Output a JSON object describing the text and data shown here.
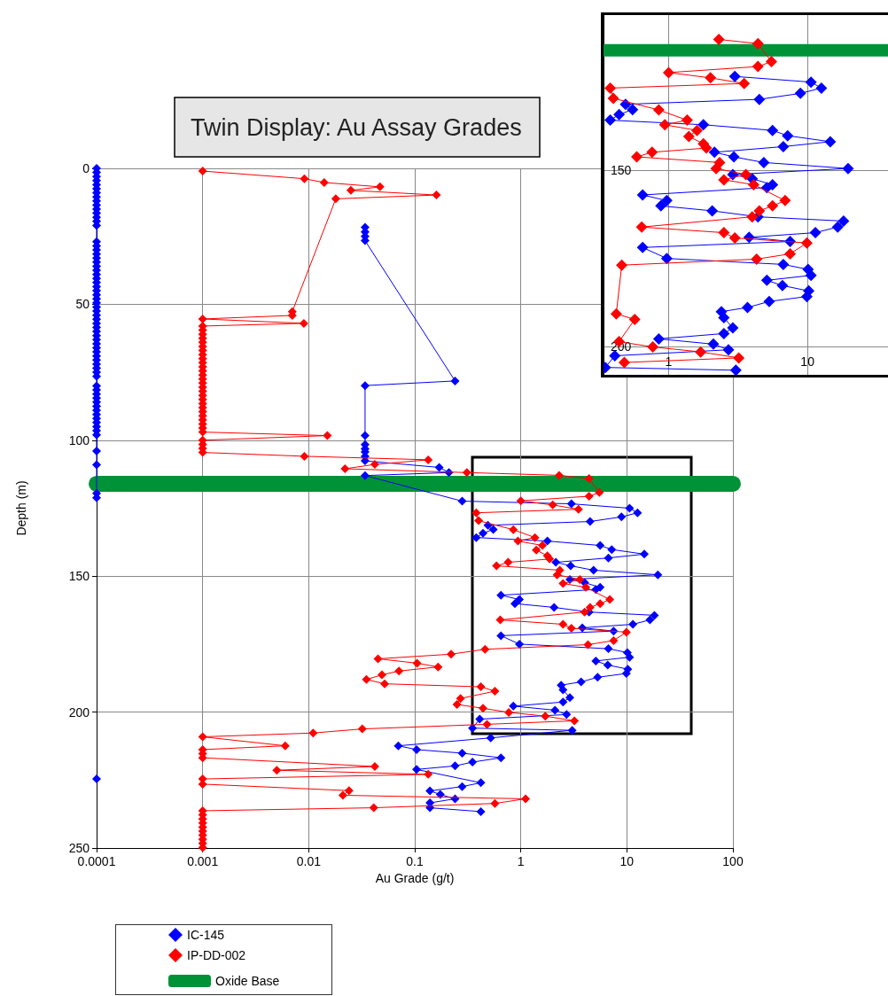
{
  "chart_data": [
    {
      "type": "line",
      "title": "Twin Display: Au Assay Grades",
      "xlabel": "Au Grade (g/t)",
      "ylabel": "Depth (m)",
      "log": "x",
      "xlim": [
        0.0001,
        100
      ],
      "ylim": [
        250,
        0
      ],
      "xticks": [
        0.0001,
        0.001,
        0.01,
        0.1,
        1,
        10,
        100
      ],
      "yticks": [
        0,
        50,
        100,
        150,
        200,
        250
      ],
      "grid": true,
      "legend": "bottom left",
      "marker": "diamond",
      "line_style": "solid",
      "series": [
        {
          "name": "IC-145",
          "color": "#0000ff",
          "x": [
            0.0001,
            0.0001,
            0.0001,
            0.0001,
            0.0001,
            0.0001,
            0.0001,
            0.0001,
            0.0001,
            0.0001,
            0.0001,
            0.0001,
            0.0001,
            0.0001,
            0.0001,
            0.0001,
            0.0001,
            0.0001,
            0.0001,
            0.0001,
            0.0001,
            0.0001,
            0.0001,
            0.0001,
            0.0001,
            0.0001,
            0.0001,
            0.0001,
            0.0001,
            0.0001,
            0.0001,
            0.0001,
            0.0001,
            0.0001,
            0.0001,
            0.0001,
            0.0001,
            0.0001,
            0.0001,
            0.0001,
            0.0001,
            0.0001,
            0.0001,
            0.0001,
            0.0001,
            0.0001,
            0.0001,
            0.0001,
            0.0001,
            0.0001,
            0.0001,
            0.0001,
            0.0001,
            0.0001,
            0.0001,
            0.0001,
            0.0001,
            0.0001,
            0.0001,
            0.0001,
            0.0001,
            0.0001,
            0.0001,
            0.0001,
            0.0001,
            0.0001,
            null,
            0.034,
            0.034,
            0.034,
            0.034,
            0.24,
            0.034,
            0.034,
            0.034,
            0.034,
            0.034,
            0.034,
            0.034,
            0.17,
            0.21,
            0.034,
            0.28,
            3.0,
            10.6,
            12.6,
            8.9,
            4.5,
            0.49,
            0.55,
            0.44,
            0.38,
            1.78,
            5.6,
            7.2,
            14.6,
            6.7,
            2.14,
            2.95,
            4.85,
            19.6,
            2.9,
            4.0,
            5.6,
            5.1,
            0.65,
            0.97,
            0.88,
            2.06,
            4.4,
            18.2,
            16.5,
            11.4,
            3.8,
            7.5,
            0.65,
            0.97,
            6.7,
            10.1,
            10.6,
            5.1,
            6.6,
            10.2,
            9.9,
            5.3,
            3.7,
            2.4,
            2.5,
            2.9,
            2.5,
            0.85,
            2.1,
            2.7,
            0.41,
            0.35,
            3.05,
            0.52,
            0.07,
            0.104,
            0.28,
            0.65,
            0.35,
            0.24,
            0.104,
            0.42,
            0.28,
            0.139,
            0.174,
            0.24,
            0.139,
            0.139,
            0.42,
            null,
            0.0001
          ],
          "values": [
            0,
            1.5,
            3,
            4.5,
            6,
            7.5,
            9,
            10.5,
            12,
            13.5,
            15,
            16.5,
            18,
            19.5,
            21,
            27,
            28.5,
            30,
            31.5,
            33,
            34.5,
            36,
            37.5,
            39,
            40.5,
            42,
            43.5,
            45,
            46.5,
            48,
            49.5,
            51,
            52.5,
            54,
            55.5,
            57,
            58.5,
            60,
            61.5,
            63,
            64.5,
            66,
            67.5,
            69,
            70.5,
            72,
            73.5,
            75,
            76.5,
            80,
            81.5,
            83,
            84.5,
            86,
            87.5,
            89,
            90.5,
            92,
            93.5,
            95,
            96.5,
            98,
            104,
            109,
            119.5,
            121.2,
            null,
            21.7,
            23.4,
            25,
            26.6,
            78.2,
            79.9,
            98.3,
            101.6,
            103.2,
            104.3,
            105.9,
            107.6,
            110,
            111.9,
            113,
            122.4,
            123.4,
            125,
            126.7,
            128.2,
            129.9,
            131.3,
            132.8,
            134.2,
            135.8,
            137.1,
            138.7,
            140.2,
            141.9,
            143.3,
            144.9,
            146.2,
            147.8,
            149.5,
            151.2,
            152.4,
            154.1,
            154.9,
            157,
            158.6,
            160.1,
            161.5,
            163.2,
            164.4,
            166.1,
            167.7,
            169,
            170.2,
            171.9,
            175,
            176.7,
            178.1,
            179.8,
            181.2,
            182.7,
            184.2,
            185.8,
            187.2,
            188.9,
            190.1,
            191.8,
            194.7,
            196.3,
            197.8,
            199.3,
            200.9,
            202.6,
            205.9,
            206.7,
            209.5,
            212.4,
            213.8,
            215.1,
            216.8,
            218.4,
            219.8,
            221.1,
            226,
            227.4,
            229,
            230.3,
            231.9,
            233.4,
            235.2,
            236.6,
            null,
            224.6
          ]
        },
        {
          "name": "IP-DD-002",
          "color": "#ff0000",
          "x": [
            0.001,
            0.0091,
            0.014,
            0.047,
            0.025,
            0.16,
            0.018,
            0.007,
            0.007,
            0.001,
            0.009,
            0.001,
            0.001,
            0.001,
            0.001,
            0.001,
            0.001,
            0.001,
            0.001,
            0.001,
            0.001,
            0.001,
            0.001,
            0.001,
            0.001,
            0.001,
            0.001,
            0.001,
            0.001,
            0.001,
            0.001,
            0.001,
            0.001,
            0.001,
            0.001,
            0.001,
            0.001,
            0.001,
            0.015,
            0.001,
            0.001,
            0.001,
            0.001,
            0.0091,
            0.134,
            0.042,
            0.022,
            0.31,
            2.3,
            4.4,
            5.5,
            4.4,
            1.0,
            2.0,
            3.5,
            0.38,
            0.4,
            0.85,
            1.36,
            0.94,
            1.6,
            1.4,
            1.78,
            1.87,
            0.76,
            0.59,
            2.33,
            2.2,
            3.6,
            2.5,
            4.1,
            6.9,
            5.6,
            4.5,
            4.0,
            0.64,
            2.5,
            3.0,
            9.9,
            7.5,
            4.3,
            0.46,
            0.22,
            0.045,
            0.105,
            0.166,
            0.071,
            0.049,
            0.035,
            0.052,
            0.42,
            0.57,
            0.27,
            0.25,
            0.44,
            0.77,
            1.7,
            3.2,
            0.48,
            0.032,
            0.011,
            0.001,
            0.006,
            0.001,
            0.001,
            0.001,
            0.042,
            0.005,
            0.134,
            0.001,
            0.001,
            0.024,
            0.021,
            1.11,
            0.57,
            0.041,
            0.001,
            0.001,
            0.001,
            0.001,
            0.001,
            0.001,
            0.001,
            0.001,
            0.001,
            0.001
          ],
          "values": [
            1,
            3.8,
            5.2,
            6.8,
            8.1,
            9.8,
            11.2,
            52.7,
            54.1,
            55.4,
            57,
            58,
            59.5,
            61,
            62.5,
            64,
            65.5,
            67,
            68.5,
            70,
            71.5,
            73,
            74.5,
            76,
            77.5,
            79,
            80.5,
            82,
            83.5,
            85,
            86.5,
            88,
            89.5,
            91,
            92.5,
            94,
            95.5,
            97,
            98.3,
            100,
            101.5,
            103,
            104.5,
            105.9,
            107.2,
            108.9,
            110.5,
            111.9,
            112.9,
            114.1,
            119.2,
            120.6,
            122.3,
            123.8,
            125.4,
            126.7,
            129.6,
            132.9,
            135.8,
            137.1,
            138.7,
            140.4,
            142.5,
            143.7,
            144.9,
            146.2,
            147.8,
            149.5,
            151.2,
            152.7,
            154.1,
            158.6,
            160.1,
            161.5,
            163.2,
            166.1,
            167.7,
            169.2,
            170.6,
            173.7,
            175.2,
            176.9,
            178.7,
            180.4,
            182,
            183.4,
            184.9,
            186.3,
            188,
            189.6,
            190.7,
            192.3,
            195,
            197.2,
            198.6,
            200.1,
            201.5,
            203.2,
            204.5,
            206.2,
            207.7,
            209.1,
            212.4,
            213.8,
            215.3,
            216.8,
            220,
            221.4,
            222.9,
            224.6,
            226.5,
            228.9,
            230.6,
            231.9,
            233.6,
            235.2,
            236.3,
            237.8,
            239.3,
            240.8,
            242.3,
            243.8,
            245.3,
            246.8,
            248.3,
            249.8
          ]
        },
        {
          "name": "Oxide Base",
          "color": "#009236",
          "marker": "none",
          "x": [
            0.0001,
            100
          ],
          "values": [
            116,
            116
          ]
        }
      ]
    },
    {
      "type": "line",
      "log": "x",
      "xlim": [
        0.34,
        38
      ],
      "ylim": [
        208,
        106
      ],
      "xticks": [
        1,
        10
      ],
      "yticks": [
        150,
        200
      ],
      "grid": true,
      "marker": "diamond",
      "line_style": "solid",
      "series": [
        {
          "color": "#0000ff",
          "x": [
            3.0,
            10.6,
            12.6,
            8.9,
            4.5,
            0.49,
            0.55,
            0.44,
            0.38,
            1.78,
            5.6,
            7.2,
            14.6,
            6.7,
            2.14,
            2.95,
            4.85,
            19.6,
            2.9,
            4.0,
            5.6,
            5.1,
            0.65,
            0.97,
            0.88,
            2.06,
            4.4,
            18.2,
            16.5,
            11.4,
            3.8,
            7.5,
            0.65,
            0.97,
            6.7,
            10.1,
            10.6,
            5.1,
            6.6,
            10.2,
            9.9,
            5.3,
            3.7,
            2.4,
            2.5,
            2.9,
            2.5,
            0.85,
            2.1,
            2.7,
            0.41,
            0.35,
            3.05
          ],
          "values": [
            123.4,
            125,
            126.7,
            128.2,
            129.9,
            131.3,
            132.8,
            134.2,
            135.8,
            137.1,
            138.7,
            140.2,
            141.9,
            143.3,
            144.9,
            146.2,
            147.8,
            149.5,
            151.2,
            152.4,
            154.1,
            154.9,
            157,
            158.6,
            160.1,
            161.5,
            163.2,
            164.4,
            166.1,
            167.7,
            169,
            170.2,
            171.9,
            175,
            176.7,
            178.1,
            179.8,
            181.2,
            182.7,
            184.2,
            185.8,
            187.2,
            188.9,
            190.1,
            191.8,
            194.7,
            196.3,
            197.8,
            199.3,
            200.9,
            202.6,
            205.9,
            206.7
          ]
        },
        {
          "color": "#ff0000",
          "x": [
            2.3,
            4.4,
            5.5,
            4.4,
            1.0,
            2.0,
            3.5,
            0.38,
            0.4,
            0.85,
            1.36,
            0.94,
            1.6,
            1.4,
            1.78,
            1.87,
            0.76,
            0.59,
            2.33,
            2.2,
            3.6,
            2.5,
            4.1,
            6.9,
            5.6,
            4.5,
            4.0,
            0.64,
            2.5,
            3.0,
            9.9,
            7.5,
            4.3,
            0.46,
            0.42,
            0.57,
            0.44,
            0.77,
            1.7,
            3.2,
            0.48
          ],
          "values": [
            112.9,
            114.1,
            119.2,
            120.6,
            122.3,
            123.8,
            125.4,
            126.7,
            129.6,
            132.9,
            135.8,
            137.1,
            138.7,
            140.4,
            142.5,
            143.7,
            144.9,
            146.2,
            147.8,
            149.5,
            151.2,
            152.7,
            154.1,
            158.6,
            160.1,
            161.5,
            163.2,
            166.1,
            167.7,
            169.2,
            170.6,
            173.7,
            175.2,
            176.9,
            190.7,
            192.3,
            198.6,
            200.1,
            201.5,
            203.2,
            204.5
          ]
        },
        {
          "color": "#009236",
          "marker": "none",
          "x": [
            0.34,
            38
          ],
          "values": [
            116,
            116
          ]
        }
      ]
    }
  ]
}
